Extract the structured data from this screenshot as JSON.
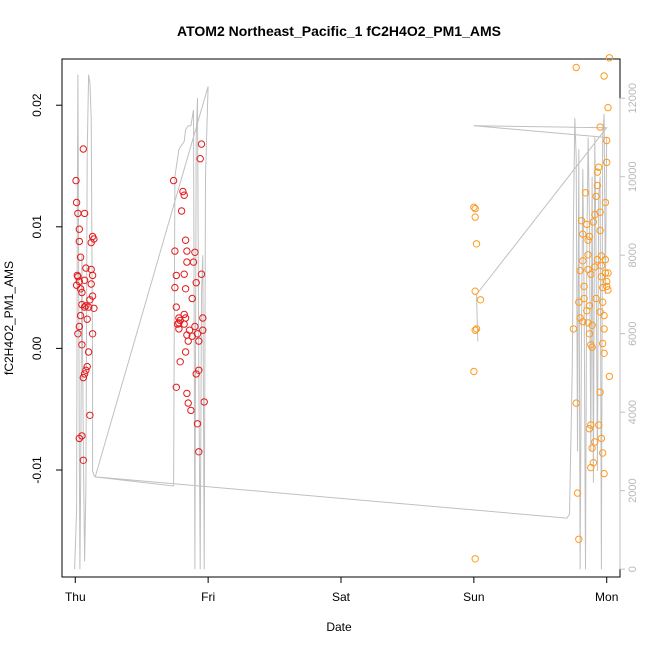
{
  "chart_data": {
    "type": "scatter",
    "title": "ATOM2 Northeast_Pacific_1 fC2H4O2_PM1_AMS",
    "xlabel": "Date",
    "ylabel": "fC2H4O2_PM1_AMS",
    "x_ticks": [
      {
        "x": 0,
        "label": "Thu"
      },
      {
        "x": 1,
        "label": "Fri"
      },
      {
        "x": 2,
        "label": "Sat"
      },
      {
        "x": 3,
        "label": "Sun"
      },
      {
        "x": 4,
        "label": "Mon"
      }
    ],
    "y_ticks": [
      {
        "y": -0.01,
        "label": "-0.01"
      },
      {
        "y": 0.0,
        "label": "0.00"
      },
      {
        "y": 0.01,
        "label": "0.01"
      },
      {
        "y": 0.02,
        "label": "0.02"
      }
    ],
    "y2_ticks": [
      {
        "y": 0,
        "label": "0"
      },
      {
        "y": 2000,
        "label": "2000"
      },
      {
        "y": 4000,
        "label": "4000"
      },
      {
        "y": 6000,
        "label": "6000"
      },
      {
        "y": 8000,
        "label": "8000"
      },
      {
        "y": 10000,
        "label": "10000"
      },
      {
        "y": 12000,
        "label": "12000"
      }
    ],
    "xlim": [
      -0.1,
      4.1
    ],
    "ylim": [
      -0.0188,
      0.0238
    ],
    "y2lim": [
      -200,
      13000
    ],
    "colors": {
      "series_red": "#e41a1c",
      "series_orange": "#ff9a1f",
      "line": "#c0c0c0",
      "axis": "#000000",
      "right_axis": "#c0c0c0"
    },
    "series": [
      {
        "color": "#e41a1c",
        "points": [
          [
            0.005,
            0.0138
          ],
          [
            0.01,
            0.012
          ],
          [
            0.02,
            0.0111
          ],
          [
            0.03,
            0.0098
          ],
          [
            0.03,
            0.0088
          ],
          [
            0.04,
            0.0075
          ],
          [
            0.015,
            0.006
          ],
          [
            0.02,
            0.0059
          ],
          [
            0.03,
            0.0055
          ],
          [
            0.01,
            0.0052
          ],
          [
            0.04,
            0.0049
          ],
          [
            0.05,
            0.0046
          ],
          [
            0.05,
            0.0036
          ],
          [
            0.04,
            0.0027
          ],
          [
            0.03,
            0.0018
          ],
          [
            0.02,
            0.0012
          ],
          [
            0.05,
            0.0003
          ],
          [
            0.06,
            -0.0024
          ],
          [
            0.07,
            -0.0021
          ],
          [
            0.08,
            -0.0018
          ],
          [
            0.09,
            -0.0015
          ],
          [
            0.06,
            0.0164
          ],
          [
            0.07,
            0.0111
          ],
          [
            0.08,
            0.0066
          ],
          [
            0.07,
            0.0056
          ],
          [
            0.08,
            0.0035
          ],
          [
            0.09,
            0.0024
          ],
          [
            0.1,
            -0.0003
          ],
          [
            0.11,
            -0.0055
          ],
          [
            0.12,
            0.0087
          ],
          [
            0.13,
            0.0092
          ],
          [
            0.14,
            0.009
          ],
          [
            0.12,
            0.0065
          ],
          [
            0.13,
            0.006
          ],
          [
            0.12,
            0.0053
          ],
          [
            0.13,
            0.0043
          ],
          [
            0.14,
            0.0033
          ],
          [
            0.13,
            0.0012
          ],
          [
            0.03,
            -0.0074
          ],
          [
            0.05,
            -0.0072
          ],
          [
            0.06,
            -0.0092
          ],
          [
            0.07,
            0.0034
          ],
          [
            0.1,
            0.0034
          ],
          [
            0.11,
            0.004
          ],
          [
            0.74,
            0.0138
          ],
          [
            0.75,
            0.008
          ],
          [
            0.76,
            0.006
          ],
          [
            0.75,
            0.005
          ],
          [
            0.76,
            0.0034
          ],
          [
            0.77,
            0.002
          ],
          [
            0.78,
            0.0016
          ],
          [
            0.76,
            -0.0032
          ],
          [
            0.78,
            0.0021
          ],
          [
            0.79,
            -0.0011
          ],
          [
            0.8,
            0.0113
          ],
          [
            0.81,
            0.0129
          ],
          [
            0.82,
            0.0126
          ],
          [
            0.83,
            0.0089
          ],
          [
            0.84,
            0.008
          ],
          [
            0.84,
            0.0071
          ],
          [
            0.82,
            0.0061
          ],
          [
            0.83,
            0.0049
          ],
          [
            0.82,
            0.0028
          ],
          [
            0.83,
            0.0025
          ],
          [
            0.84,
            0.0011
          ],
          [
            0.85,
            0.0006
          ],
          [
            0.83,
            -0.0003
          ],
          [
            0.84,
            -0.0037
          ],
          [
            0.85,
            -0.0045
          ],
          [
            0.87,
            -0.0051
          ],
          [
            0.88,
            0.0041
          ],
          [
            0.89,
            0.0071
          ],
          [
            0.9,
            0.0079
          ],
          [
            0.91,
            0.0054
          ],
          [
            0.9,
            0.0018
          ],
          [
            0.92,
            0.0012
          ],
          [
            0.93,
            0.0006
          ],
          [
            0.91,
            -0.0021
          ],
          [
            0.93,
            -0.0018
          ],
          [
            0.92,
            -0.0062
          ],
          [
            0.93,
            -0.0085
          ],
          [
            0.94,
            0.0156
          ],
          [
            0.95,
            0.0168
          ],
          [
            0.95,
            0.0061
          ],
          [
            0.96,
            0.0025
          ],
          [
            0.96,
            0.0015
          ],
          [
            0.97,
            -0.0044
          ],
          [
            0.78,
            0.0025
          ],
          [
            0.82,
            0.002
          ],
          [
            0.86,
            0.0015
          ],
          [
            0.88,
            0.001
          ],
          [
            0.79,
            0.0023
          ]
        ]
      },
      {
        "color": "#ff9a1f",
        "points": [
          [
            3.0,
            0.0116
          ],
          [
            3.01,
            0.0115
          ],
          [
            3.01,
            0.0108
          ],
          [
            3.02,
            0.0086
          ],
          [
            3.01,
            0.0047
          ],
          [
            3.02,
            0.0016
          ],
          [
            3.01,
            0.0015
          ],
          [
            3.0,
            -0.0019
          ],
          [
            3.01,
            -0.0173
          ],
          [
            3.05,
            0.004
          ],
          [
            3.75,
            0.0016
          ],
          [
            3.77,
            -0.0045
          ],
          [
            3.78,
            -0.0119
          ],
          [
            3.79,
            -0.0157
          ],
          [
            3.79,
            0.0038
          ],
          [
            3.8,
            0.0025
          ],
          [
            3.8,
            0.0064
          ],
          [
            3.81,
            0.0105
          ],
          [
            3.82,
            0.0022
          ],
          [
            3.83,
            0.0051
          ],
          [
            3.83,
            0.0041
          ],
          [
            3.82,
            0.0072
          ],
          [
            3.82,
            0.0094
          ],
          [
            3.84,
            0.0128
          ],
          [
            3.85,
            0.0102
          ],
          [
            3.86,
            0.0089
          ],
          [
            3.87,
            0.0092
          ],
          [
            3.86,
            0.0077
          ],
          [
            3.86,
            0.0065
          ],
          [
            3.88,
            0.0061
          ],
          [
            3.87,
            0.0035
          ],
          [
            3.86,
            0.0021
          ],
          [
            3.87,
            0.0012
          ],
          [
            3.88,
            0.0003
          ],
          [
            3.89,
            0.0001
          ],
          [
            3.88,
            -0.0063
          ],
          [
            3.87,
            -0.0066
          ],
          [
            3.88,
            -0.0098
          ],
          [
            3.89,
            -0.0082
          ],
          [
            3.9,
            -0.0094
          ],
          [
            3.91,
            -0.0077
          ],
          [
            3.9,
            0.0104
          ],
          [
            3.91,
            0.011
          ],
          [
            3.92,
            0.0125
          ],
          [
            3.93,
            0.0145
          ],
          [
            3.94,
            0.0149
          ],
          [
            3.93,
            0.0134
          ],
          [
            3.95,
            0.0112
          ],
          [
            3.95,
            0.0097
          ],
          [
            3.96,
            0.0076
          ],
          [
            3.96,
            0.0059
          ],
          [
            3.97,
            0.005
          ],
          [
            3.97,
            0.0038
          ],
          [
            3.98,
            0.0027
          ],
          [
            3.98,
            0.0016
          ],
          [
            3.97,
            0.0004
          ],
          [
            3.98,
            -0.0004
          ],
          [
            3.95,
            -0.0036
          ],
          [
            3.94,
            -0.0063
          ],
          [
            3.96,
            -0.0074
          ],
          [
            3.97,
            -0.0086
          ],
          [
            3.98,
            -0.0103
          ],
          [
            3.99,
            0.012
          ],
          [
            4.0,
            0.0153
          ],
          [
            4.0,
            0.0171
          ],
          [
            4.01,
            0.0198
          ],
          [
            4.02,
            0.0239
          ],
          [
            3.99,
            0.0073
          ],
          [
            4.01,
            0.0062
          ],
          [
            4.0,
            0.0051
          ],
          [
            4.01,
            0.0048
          ],
          [
            4.02,
            -0.0023
          ],
          [
            3.77,
            0.0231
          ],
          [
            3.95,
            0.0182
          ],
          [
            3.98,
            0.0224
          ],
          [
            3.91,
            0.0067
          ],
          [
            3.93,
            0.0073
          ],
          [
            3.96,
            0.0068
          ],
          [
            3.99,
            0.0062
          ],
          [
            4.0,
            0.0055
          ],
          [
            3.92,
            0.0041
          ],
          [
            3.95,
            0.003
          ],
          [
            3.85,
            0.0031
          ],
          [
            3.89,
            0.0019
          ]
        ]
      }
    ],
    "line_series": {
      "color": "#c0c0c0",
      "axis": "right",
      "points": [
        [
          -0.005,
          0
        ],
        [
          0.01,
          1500
        ],
        [
          0.015,
          9300
        ],
        [
          0.02,
          12600
        ],
        [
          0.025,
          8000
        ],
        [
          0.03,
          3000
        ],
        [
          0.035,
          0
        ],
        [
          0.04,
          2000
        ],
        [
          0.05,
          8000
        ],
        [
          0.06,
          3200
        ],
        [
          0.07,
          200
        ],
        [
          0.08,
          2000
        ],
        [
          0.09,
          10600
        ],
        [
          0.1,
          12600
        ],
        [
          0.11,
          12400
        ],
        [
          0.12,
          11500
        ],
        [
          0.13,
          5000
        ],
        [
          0.13,
          2500
        ],
        [
          0.14,
          2400
        ],
        [
          0.15,
          2350
        ],
        [
          0.74,
          2120
        ],
        [
          0.75,
          10000
        ],
        [
          0.78,
          10700
        ],
        [
          0.8,
          10800
        ],
        [
          0.82,
          10900
        ],
        [
          0.83,
          11200
        ],
        [
          0.85,
          11300
        ],
        [
          0.87,
          11300
        ],
        [
          0.89,
          11700
        ],
        [
          0.9,
          0
        ],
        [
          0.91,
          11000
        ],
        [
          0.92,
          12000
        ],
        [
          0.93,
          5000
        ],
        [
          0.94,
          0
        ],
        [
          0.95,
          7000
        ],
        [
          0.96,
          8000
        ],
        [
          0.97,
          0
        ],
        [
          0.98,
          10000
        ],
        [
          1.0,
          12300
        ],
        [
          0.15,
          2350
        ],
        [
          3.7,
          1300
        ],
        [
          3.72,
          1400
        ],
        [
          3.74,
          5000
        ],
        [
          3.75,
          9000
        ],
        [
          3.76,
          11500
        ],
        [
          3.77,
          10500
        ],
        [
          3.78,
          3000
        ],
        [
          3.79,
          10700
        ],
        [
          3.8,
          0
        ],
        [
          3.81,
          6000
        ],
        [
          3.82,
          10200
        ],
        [
          3.83,
          7000
        ],
        [
          3.84,
          0
        ],
        [
          3.85,
          8000
        ],
        [
          3.86,
          11000
        ],
        [
          3.87,
          9000
        ],
        [
          3.88,
          3000
        ],
        [
          3.89,
          10000
        ],
        [
          3.9,
          2200
        ],
        [
          3.91,
          11000
        ],
        [
          3.92,
          8000
        ],
        [
          3.93,
          2500
        ],
        [
          3.94,
          9500
        ],
        [
          3.95,
          10000
        ],
        [
          3.96,
          0
        ],
        [
          3.97,
          11000
        ],
        [
          3.98,
          11600
        ],
        [
          3.99,
          7000
        ],
        [
          4.0,
          11000
        ],
        [
          3.0,
          11300
        ],
        [
          4.0,
          11250
        ],
        [
          3.02,
          7000
        ],
        [
          3.03,
          5800
        ]
      ]
    }
  }
}
